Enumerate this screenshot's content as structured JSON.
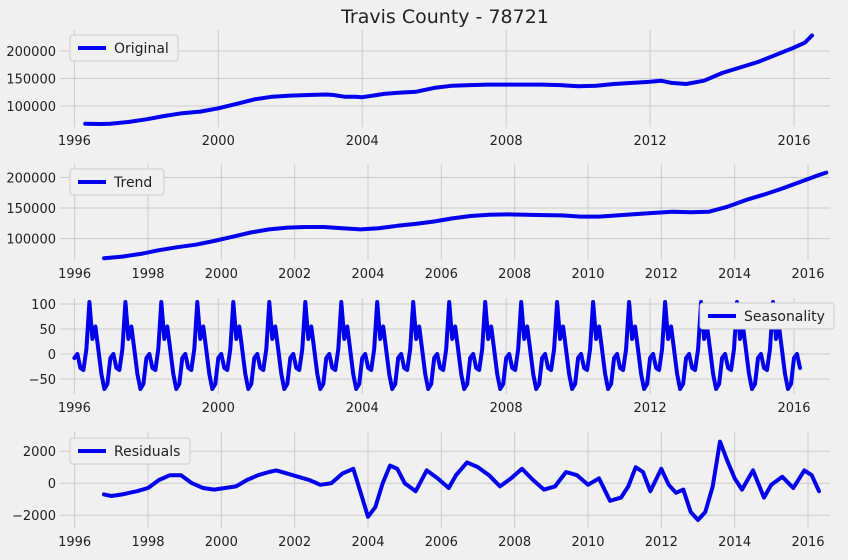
{
  "chart_data": [
    {
      "type": "line",
      "title": "Travis County - 78721",
      "series": [
        {
          "name": "Original",
          "color": "#0000ee"
        }
      ],
      "xlim": [
        1995.6,
        2017.0
      ],
      "ylim": [
        62000,
        238000
      ],
      "xticks": [
        1996,
        2000,
        2004,
        2008,
        2012,
        2016
      ],
      "xtick_labels": [
        "1996",
        "2000",
        "2004",
        "2008",
        "2012",
        "2016"
      ],
      "yticks": [
        100000,
        150000,
        200000
      ],
      "ytick_labels": [
        "100000",
        "150000",
        "200000"
      ],
      "grid": true,
      "legend": "upper-left",
      "points": [
        [
          1996.3,
          68000
        ],
        [
          1996.7,
          67500
        ],
        [
          1997.0,
          67800
        ],
        [
          1997.5,
          71000
        ],
        [
          1998.0,
          76000
        ],
        [
          1998.5,
          82000
        ],
        [
          1999.0,
          87000
        ],
        [
          1999.5,
          90000
        ],
        [
          2000.0,
          96000
        ],
        [
          2000.5,
          104000
        ],
        [
          2001.0,
          112000
        ],
        [
          2001.5,
          117000
        ],
        [
          2002.0,
          119000
        ],
        [
          2002.5,
          120000
        ],
        [
          2003.0,
          121000
        ],
        [
          2003.2,
          120000
        ],
        [
          2003.5,
          117000
        ],
        [
          2003.8,
          117000
        ],
        [
          2004.0,
          116000
        ],
        [
          2004.3,
          119000
        ],
        [
          2004.6,
          122000
        ],
        [
          2005.0,
          124000
        ],
        [
          2005.5,
          126000
        ],
        [
          2006.0,
          133000
        ],
        [
          2006.5,
          137000
        ],
        [
          2007.0,
          138000
        ],
        [
          2007.5,
          139000
        ],
        [
          2008.0,
          139000
        ],
        [
          2008.5,
          139000
        ],
        [
          2009.0,
          139000
        ],
        [
          2009.5,
          138000
        ],
        [
          2010.0,
          136000
        ],
        [
          2010.5,
          137000
        ],
        [
          2011.0,
          140000
        ],
        [
          2011.5,
          142000
        ],
        [
          2012.0,
          144000
        ],
        [
          2012.3,
          146000
        ],
        [
          2012.6,
          142000
        ],
        [
          2013.0,
          140000
        ],
        [
          2013.5,
          146000
        ],
        [
          2014.0,
          160000
        ],
        [
          2014.5,
          170000
        ],
        [
          2015.0,
          180000
        ],
        [
          2015.5,
          193000
        ],
        [
          2016.0,
          206000
        ],
        [
          2016.3,
          215000
        ],
        [
          2016.5,
          228000
        ]
      ]
    },
    {
      "type": "line",
      "series": [
        {
          "name": "Trend",
          "color": "#0000ee"
        }
      ],
      "xlim": [
        1995.6,
        2016.6
      ],
      "ylim": [
        65000,
        222000
      ],
      "xticks": [
        1996,
        1998,
        2000,
        2002,
        2004,
        2006,
        2008,
        2010,
        2012,
        2014,
        2016
      ],
      "xtick_labels": [
        "1996",
        "1998",
        "2000",
        "2002",
        "2004",
        "2006",
        "2008",
        "2010",
        "2012",
        "2014",
        "2016"
      ],
      "yticks": [
        100000,
        150000,
        200000
      ],
      "ytick_labels": [
        "100000",
        "150000",
        "200000"
      ],
      "grid": true,
      "legend": "upper-left",
      "points": [
        [
          1996.8,
          68000
        ],
        [
          1997.3,
          70500
        ],
        [
          1997.8,
          75000
        ],
        [
          1998.3,
          81000
        ],
        [
          1998.8,
          86000
        ],
        [
          1999.3,
          90000
        ],
        [
          1999.8,
          96000
        ],
        [
          2000.3,
          103000
        ],
        [
          2000.8,
          110000
        ],
        [
          2001.3,
          115000
        ],
        [
          2001.8,
          118000
        ],
        [
          2002.3,
          119000
        ],
        [
          2002.8,
          119000
        ],
        [
          2003.3,
          117000
        ],
        [
          2003.8,
          115000
        ],
        [
          2004.3,
          117000
        ],
        [
          2004.8,
          121000
        ],
        [
          2005.3,
          124000
        ],
        [
          2005.8,
          128000
        ],
        [
          2006.3,
          133000
        ],
        [
          2006.8,
          137000
        ],
        [
          2007.3,
          139000
        ],
        [
          2007.8,
          139500
        ],
        [
          2008.3,
          139000
        ],
        [
          2008.8,
          138500
        ],
        [
          2009.3,
          138000
        ],
        [
          2009.8,
          136000
        ],
        [
          2010.3,
          136000
        ],
        [
          2010.8,
          138000
        ],
        [
          2011.3,
          140000
        ],
        [
          2011.8,
          142000
        ],
        [
          2012.3,
          144000
        ],
        [
          2012.8,
          143000
        ],
        [
          2013.3,
          144000
        ],
        [
          2013.8,
          152000
        ],
        [
          2014.3,
          163000
        ],
        [
          2014.8,
          172000
        ],
        [
          2015.3,
          182000
        ],
        [
          2015.8,
          193000
        ],
        [
          2016.3,
          204000
        ],
        [
          2016.5,
          208000
        ]
      ]
    },
    {
      "type": "line",
      "series": [
        {
          "name": "Seasonality",
          "color": "#0000ee"
        }
      ],
      "xlim": [
        1995.6,
        2017.0
      ],
      "ylim": [
        -80,
        112
      ],
      "xticks": [
        1996,
        2000,
        2004,
        2008,
        2012,
        2016
      ],
      "xtick_labels": [
        "1996",
        "2000",
        "2004",
        "2008",
        "2012",
        "2016"
      ],
      "yticks": [
        -50,
        0,
        50,
        100
      ],
      "ytick_labels": [
        "−50",
        "0",
        "50",
        "100"
      ],
      "grid": true,
      "legend": "right",
      "start_year": 1996.0,
      "end_year": 2016.2,
      "pattern": [
        -8,
        0,
        -28,
        -32,
        10,
        104,
        30,
        55,
        8,
        -40,
        -70,
        -60
      ]
    },
    {
      "type": "line",
      "series": [
        {
          "name": "Residuals",
          "color": "#0000ee"
        }
      ],
      "xlim": [
        1995.6,
        2016.6
      ],
      "ylim": [
        -2800,
        3200
      ],
      "xticks": [
        1996,
        1998,
        2000,
        2002,
        2004,
        2006,
        2008,
        2010,
        2012,
        2014,
        2016
      ],
      "xtick_labels": [
        "1996",
        "1998",
        "2000",
        "2002",
        "2004",
        "2006",
        "2008",
        "2010",
        "2012",
        "2014",
        "2016"
      ],
      "yticks": [
        -2000,
        0,
        2000
      ],
      "ytick_labels": [
        "−2000",
        "0",
        "2000"
      ],
      "grid": true,
      "legend": "upper-left",
      "points": [
        [
          1996.8,
          -700
        ],
        [
          1997.0,
          -800
        ],
        [
          1997.3,
          -700
        ],
        [
          1997.7,
          -500
        ],
        [
          1998.0,
          -300
        ],
        [
          1998.3,
          200
        ],
        [
          1998.6,
          500
        ],
        [
          1998.9,
          500
        ],
        [
          1999.2,
          0
        ],
        [
          1999.5,
          -300
        ],
        [
          1999.8,
          -400
        ],
        [
          2000.1,
          -300
        ],
        [
          2000.4,
          -200
        ],
        [
          2000.7,
          200
        ],
        [
          2001.0,
          500
        ],
        [
          2001.3,
          700
        ],
        [
          2001.5,
          800
        ],
        [
          2001.8,
          600
        ],
        [
          2002.1,
          400
        ],
        [
          2002.4,
          200
        ],
        [
          2002.7,
          -100
        ],
        [
          2003.0,
          0
        ],
        [
          2003.3,
          600
        ],
        [
          2003.6,
          900
        ],
        [
          2003.8,
          -600
        ],
        [
          2004.0,
          -2100
        ],
        [
          2004.2,
          -1500
        ],
        [
          2004.4,
          0
        ],
        [
          2004.6,
          1100
        ],
        [
          2004.8,
          900
        ],
        [
          2005.0,
          0
        ],
        [
          2005.3,
          -500
        ],
        [
          2005.6,
          800
        ],
        [
          2005.9,
          300
        ],
        [
          2006.2,
          -300
        ],
        [
          2006.4,
          500
        ],
        [
          2006.7,
          1300
        ],
        [
          2007.0,
          1000
        ],
        [
          2007.3,
          500
        ],
        [
          2007.6,
          -200
        ],
        [
          2007.9,
          300
        ],
        [
          2008.2,
          900
        ],
        [
          2008.5,
          200
        ],
        [
          2008.8,
          -400
        ],
        [
          2009.1,
          -200
        ],
        [
          2009.4,
          700
        ],
        [
          2009.7,
          500
        ],
        [
          2010.0,
          -100
        ],
        [
          2010.3,
          300
        ],
        [
          2010.6,
          -1100
        ],
        [
          2010.9,
          -900
        ],
        [
          2011.1,
          -200
        ],
        [
          2011.3,
          1000
        ],
        [
          2011.5,
          700
        ],
        [
          2011.7,
          -500
        ],
        [
          2012.0,
          900
        ],
        [
          2012.2,
          -100
        ],
        [
          2012.4,
          -600
        ],
        [
          2012.6,
          -400
        ],
        [
          2012.8,
          -1800
        ],
        [
          2013.0,
          -2300
        ],
        [
          2013.2,
          -1800
        ],
        [
          2013.4,
          -200
        ],
        [
          2013.6,
          2600
        ],
        [
          2013.8,
          1400
        ],
        [
          2014.0,
          300
        ],
        [
          2014.2,
          -400
        ],
        [
          2014.5,
          800
        ],
        [
          2014.8,
          -900
        ],
        [
          2015.0,
          -100
        ],
        [
          2015.3,
          400
        ],
        [
          2015.6,
          -300
        ],
        [
          2015.9,
          800
        ],
        [
          2016.1,
          500
        ],
        [
          2016.3,
          -500
        ]
      ]
    }
  ]
}
